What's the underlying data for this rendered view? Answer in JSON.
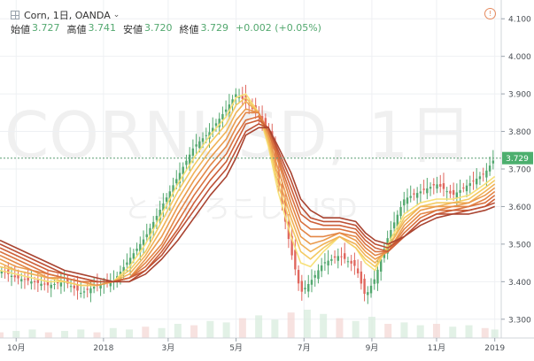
{
  "header": {
    "symbol": "Corn, 1日, OANDA",
    "open_label": "始値",
    "open": "3.727",
    "high_label": "高値",
    "high": "3.741",
    "low_label": "安値",
    "low": "3.720",
    "close_label": "終値",
    "close": "3.729",
    "change": "+0.002 (+0.05%)"
  },
  "watermark": {
    "line1": "CORNUSD, 1日",
    "line2": "とうもろこし, USD"
  },
  "chart_data": {
    "type": "line",
    "title": "Corn, 1日, OANDA",
    "xlabel": "",
    "ylabel": "",
    "ylim": [
      3.25,
      4.15
    ],
    "last_price_label": "3.729",
    "y_ticks": [
      "4.100",
      "4.000",
      "3.900",
      "3.800",
      "3.700",
      "3.600",
      "3.500",
      "3.400",
      "3.300"
    ],
    "x_ticks": [
      "10月",
      "2018",
      "3月",
      "5月",
      "7月",
      "9月",
      "11月",
      "2019"
    ],
    "x_tick_pos": [
      0.5,
      3.2,
      5.2,
      7.3,
      9.4,
      11.5,
      13.5,
      15.3
    ],
    "x_range": [
      0.0,
      15.5
    ],
    "price": {
      "x": [
        0.0,
        0.5,
        1.0,
        1.5,
        2.0,
        2.5,
        3.0,
        3.5,
        4.0,
        4.5,
        5.0,
        5.5,
        6.0,
        6.5,
        7.0,
        7.3,
        7.6,
        8.0,
        8.3,
        8.6,
        9.0,
        9.3,
        9.6,
        10.0,
        10.5,
        11.0,
        11.3,
        11.6,
        12.0,
        12.5,
        13.0,
        13.5,
        14.0,
        14.5,
        15.0,
        15.3
      ],
      "y": [
        3.43,
        3.41,
        3.4,
        3.39,
        3.4,
        3.37,
        3.39,
        3.4,
        3.46,
        3.52,
        3.6,
        3.68,
        3.76,
        3.8,
        3.86,
        3.9,
        3.88,
        3.84,
        3.8,
        3.66,
        3.48,
        3.37,
        3.4,
        3.45,
        3.47,
        3.44,
        3.36,
        3.41,
        3.52,
        3.62,
        3.64,
        3.66,
        3.63,
        3.66,
        3.69,
        3.729
      ]
    },
    "ribbon": {
      "colors": [
        "#f7e079",
        "#f4ca63",
        "#f0b257",
        "#ea9b4e",
        "#e38646",
        "#d9723f",
        "#cd6039",
        "#bd5035",
        "#a94431"
      ],
      "series": [
        {
          "values": [
            3.43,
            3.42,
            3.41,
            3.4,
            3.4,
            3.39,
            3.39,
            3.4,
            3.44,
            3.5,
            3.58,
            3.66,
            3.73,
            3.79,
            3.84,
            3.89,
            3.9,
            3.85,
            3.76,
            3.64,
            3.52,
            3.45,
            3.44,
            3.48,
            3.52,
            3.49,
            3.45,
            3.43,
            3.5,
            3.58,
            3.61,
            3.62,
            3.62,
            3.63,
            3.66,
            3.68
          ]
        },
        {
          "values": [
            3.44,
            3.43,
            3.42,
            3.41,
            3.4,
            3.39,
            3.39,
            3.4,
            3.43,
            3.48,
            3.56,
            3.64,
            3.71,
            3.77,
            3.82,
            3.87,
            3.89,
            3.85,
            3.77,
            3.66,
            3.55,
            3.48,
            3.46,
            3.49,
            3.52,
            3.49,
            3.46,
            3.44,
            3.49,
            3.57,
            3.6,
            3.61,
            3.61,
            3.62,
            3.65,
            3.67
          ]
        },
        {
          "values": [
            3.45,
            3.43,
            3.42,
            3.41,
            3.41,
            3.4,
            3.39,
            3.4,
            3.42,
            3.47,
            3.54,
            3.62,
            3.69,
            3.75,
            3.8,
            3.85,
            3.88,
            3.85,
            3.78,
            3.68,
            3.57,
            3.5,
            3.48,
            3.5,
            3.52,
            3.5,
            3.47,
            3.45,
            3.49,
            3.56,
            3.6,
            3.6,
            3.61,
            3.61,
            3.64,
            3.66
          ]
        },
        {
          "values": [
            3.46,
            3.44,
            3.43,
            3.41,
            3.41,
            3.4,
            3.39,
            3.4,
            3.41,
            3.46,
            3.52,
            3.6,
            3.67,
            3.73,
            3.78,
            3.83,
            3.86,
            3.85,
            3.79,
            3.7,
            3.59,
            3.52,
            3.5,
            3.51,
            3.53,
            3.51,
            3.48,
            3.46,
            3.48,
            3.55,
            3.59,
            3.6,
            3.6,
            3.61,
            3.63,
            3.65
          ]
        },
        {
          "values": [
            3.47,
            3.45,
            3.43,
            3.42,
            3.41,
            3.4,
            3.4,
            3.4,
            3.41,
            3.45,
            3.5,
            3.58,
            3.65,
            3.71,
            3.76,
            3.81,
            3.85,
            3.85,
            3.8,
            3.72,
            3.61,
            3.54,
            3.52,
            3.52,
            3.53,
            3.52,
            3.49,
            3.47,
            3.48,
            3.54,
            3.58,
            3.59,
            3.6,
            3.6,
            3.62,
            3.64
          ]
        },
        {
          "values": [
            3.48,
            3.46,
            3.44,
            3.42,
            3.41,
            3.4,
            3.4,
            3.4,
            3.41,
            3.44,
            3.49,
            3.56,
            3.63,
            3.69,
            3.74,
            3.79,
            3.83,
            3.84,
            3.8,
            3.73,
            3.63,
            3.56,
            3.54,
            3.54,
            3.54,
            3.53,
            3.5,
            3.48,
            3.48,
            3.53,
            3.57,
            3.59,
            3.59,
            3.6,
            3.61,
            3.63
          ]
        },
        {
          "values": [
            3.49,
            3.47,
            3.45,
            3.43,
            3.42,
            3.41,
            3.4,
            3.4,
            3.41,
            3.43,
            3.48,
            3.54,
            3.61,
            3.67,
            3.72,
            3.77,
            3.82,
            3.83,
            3.81,
            3.74,
            3.65,
            3.58,
            3.56,
            3.55,
            3.55,
            3.54,
            3.51,
            3.49,
            3.48,
            3.52,
            3.56,
            3.58,
            3.59,
            3.59,
            3.6,
            3.62
          ]
        },
        {
          "values": [
            3.5,
            3.48,
            3.46,
            3.44,
            3.42,
            3.41,
            3.4,
            3.4,
            3.4,
            3.43,
            3.47,
            3.53,
            3.59,
            3.65,
            3.7,
            3.75,
            3.8,
            3.82,
            3.81,
            3.75,
            3.67,
            3.6,
            3.57,
            3.56,
            3.56,
            3.55,
            3.52,
            3.5,
            3.49,
            3.52,
            3.56,
            3.58,
            3.58,
            3.59,
            3.6,
            3.61
          ]
        },
        {
          "values": [
            3.51,
            3.49,
            3.47,
            3.45,
            3.43,
            3.42,
            3.41,
            3.4,
            3.4,
            3.42,
            3.46,
            3.51,
            3.57,
            3.63,
            3.68,
            3.73,
            3.79,
            3.81,
            3.81,
            3.76,
            3.69,
            3.62,
            3.59,
            3.57,
            3.57,
            3.56,
            3.53,
            3.51,
            3.5,
            3.52,
            3.55,
            3.57,
            3.58,
            3.58,
            3.59,
            3.6
          ]
        }
      ]
    },
    "volume": {
      "x": [
        0.0,
        0.5,
        1.0,
        1.5,
        2.0,
        2.5,
        3.0,
        3.5,
        4.0,
        4.5,
        5.0,
        5.5,
        6.0,
        6.5,
        7.0,
        7.5,
        8.0,
        8.5,
        9.0,
        9.5,
        10.0,
        10.5,
        11.0,
        11.5,
        12.0,
        12.5,
        13.0,
        13.5,
        14.0,
        14.5,
        15.0,
        15.3
      ],
      "values": [
        0.2,
        0.25,
        0.3,
        0.2,
        0.25,
        0.3,
        0.2,
        0.35,
        0.3,
        0.4,
        0.35,
        0.5,
        0.45,
        0.6,
        0.55,
        0.7,
        0.8,
        0.65,
        0.9,
        1.0,
        0.85,
        0.7,
        0.6,
        0.75,
        0.5,
        0.55,
        0.45,
        0.5,
        0.4,
        0.45,
        0.35,
        0.3
      ]
    },
    "colors": {
      "up": "#53a86f",
      "down": "#e0675e",
      "price_line": "#5a9e72",
      "last_price_bg": "#4caf6e"
    }
  }
}
